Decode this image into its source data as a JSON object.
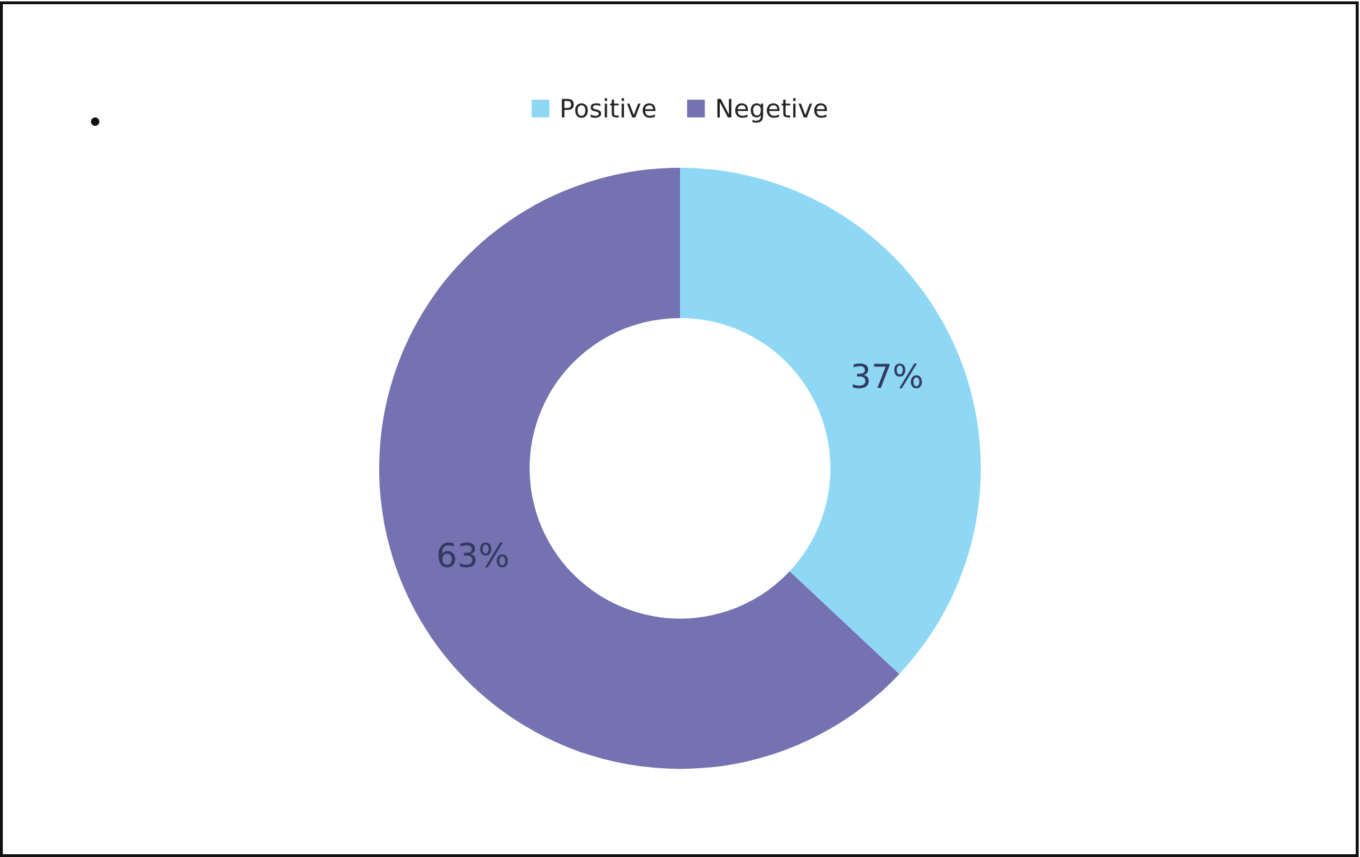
{
  "chart_data": {
    "type": "donut",
    "categories": [
      "Positive",
      "Negetive"
    ],
    "values": [
      37,
      63
    ],
    "colors": [
      "#8ed8f5",
      "#7472b0"
    ],
    "value_labels": [
      "37%",
      "63%"
    ],
    "legend": "top"
  }
}
